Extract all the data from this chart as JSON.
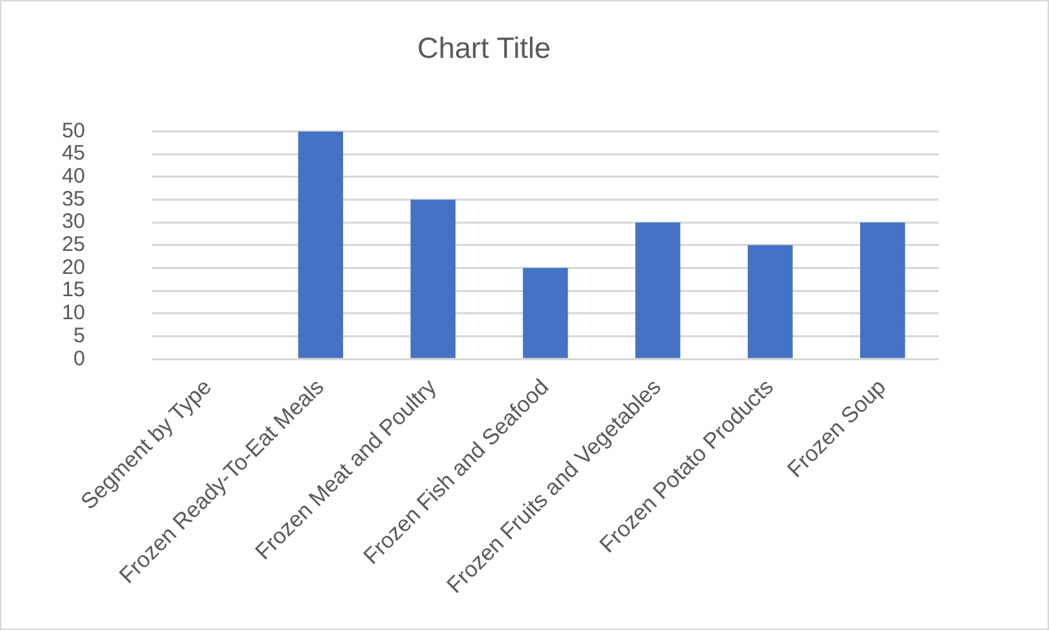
{
  "chart_data": {
    "type": "bar",
    "title": "Chart Title",
    "categories": [
      "Segment by Type",
      "Frozen Ready-To-Eat Meals",
      "Frozen Meat and Poultry",
      "Frozen Fish and Seafood",
      "Frozen Fruits and Vegetables",
      "Frozen Potato Products",
      "Frozen Soup"
    ],
    "values": [
      null,
      50,
      35,
      20,
      30,
      25,
      30
    ],
    "color": "#4472c4",
    "ylim": [
      0,
      50
    ],
    "yticks": [
      0,
      5,
      10,
      15,
      20,
      25,
      30,
      35,
      40,
      45,
      50
    ],
    "grid": "y",
    "legend": false
  }
}
